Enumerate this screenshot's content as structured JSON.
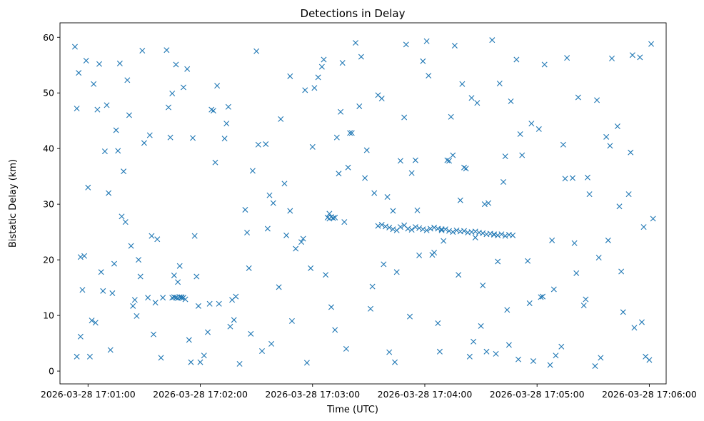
{
  "chart_data": {
    "type": "scatter",
    "title": "Detections in Delay",
    "xlabel": "Time (UTC)",
    "ylabel": "Bistatic Delay (km)",
    "marker": "x",
    "color": "#1f77b4",
    "grid": false,
    "legend": "none",
    "xlim": [
      "2026-03-28 17:00:45",
      "2026-03-28 17:06:09"
    ],
    "ylim": [
      -2.3,
      62.6
    ],
    "x_ticks": [
      "2026-03-28 17:01:00",
      "2026-03-28 17:02:00",
      "2026-03-28 17:03:00",
      "2026-03-28 17:04:00",
      "2026-03-28 17:05:00",
      "2026-03-28 17:06:00"
    ],
    "y_ticks": [
      "0",
      "10",
      "20",
      "30",
      "40",
      "50",
      "60"
    ],
    "series": [
      {
        "x": [
          "2026-03-28 17:00:53",
          "2026-03-28 17:00:54",
          "2026-03-28 17:00:55",
          "2026-03-28 17:00:56",
          "2026-03-28 17:00:57",
          "2026-03-28 17:00:59",
          "2026-03-28 17:01:01",
          "2026-03-28 17:01:03",
          "2026-03-28 17:01:05",
          "2026-03-28 17:01:06",
          "2026-03-28 17:01:08",
          "2026-03-28 17:01:10",
          "2026-03-28 17:01:12",
          "2026-03-28 17:01:14",
          "2026-03-28 17:01:15",
          "2026-03-28 17:01:17",
          "2026-03-28 17:01:19",
          "2026-03-28 17:01:21",
          "2026-03-28 17:01:22",
          "2026-03-28 17:01:24",
          "2026-03-28 17:01:26",
          "2026-03-28 17:01:28",
          "2026-03-28 17:01:30",
          "2026-03-28 17:01:32",
          "2026-03-28 17:01:35",
          "2026-03-28 17:01:37",
          "2026-03-28 17:01:40",
          "2026-03-28 17:01:43",
          "2026-03-28 17:01:45",
          "2026-03-28 17:01:47",
          "2026-03-28 17:01:49",
          "2026-03-28 17:01:50",
          "2026-03-28 17:01:51",
          "2026-03-28 17:01:52",
          "2026-03-28 17:01:53",
          "2026-03-28 17:01:55",
          "2026-03-28 17:01:58",
          "2026-03-28 17:02:00",
          "2026-03-28 17:02:02",
          "2026-03-28 17:02:05",
          "2026-03-28 17:02:08",
          "2026-03-28 17:02:10",
          "2026-03-28 17:02:13",
          "2026-03-28 17:02:15",
          "2026-03-28 17:02:18",
          "2026-03-28 17:02:21",
          "2026-03-28 17:02:24",
          "2026-03-28 17:02:27",
          "2026-03-28 17:02:30",
          "2026-03-28 17:02:33",
          "2026-03-28 17:02:36",
          "2026-03-28 17:02:39",
          "2026-03-28 17:02:42",
          "2026-03-28 17:02:45",
          "2026-03-28 17:02:48",
          "2026-03-28 17:02:51",
          "2026-03-28 17:02:54",
          "2026-03-28 17:02:57",
          "2026-03-28 17:03:00",
          "2026-03-28 17:03:03",
          "2026-03-28 17:03:06",
          "2026-03-28 17:03:09",
          "2026-03-28 17:03:12",
          "2026-03-28 17:03:14",
          "2026-03-28 17:03:15",
          "2026-03-28 17:03:16",
          "2026-03-28 17:03:18",
          "2026-03-28 17:03:20",
          "2026-03-28 17:03:23",
          "2026-03-28 17:03:26",
          "2026-03-28 17:03:29",
          "2026-03-28 17:03:32",
          "2026-03-28 17:03:35",
          "2026-03-28 17:03:38",
          "2026-03-28 17:03:41",
          "2026-03-28 17:03:44",
          "2026-03-28 17:03:47",
          "2026-03-28 17:03:50",
          "2026-03-28 17:03:53",
          "2026-03-28 17:03:56",
          "2026-03-28 17:03:59",
          "2026-03-28 17:04:02",
          "2026-03-28 17:04:05",
          "2026-03-28 17:04:08",
          "2026-03-28 17:04:10",
          "2026-03-28 17:04:12",
          "2026-03-28 17:04:14",
          "2026-03-28 17:04:16",
          "2026-03-28 17:04:18",
          "2026-03-28 17:04:20",
          "2026-03-28 17:04:22",
          "2026-03-28 17:04:24",
          "2026-03-28 17:04:26",
          "2026-03-28 17:04:28",
          "2026-03-28 17:04:30",
          "2026-03-28 17:04:32",
          "2026-03-28 17:04:34",
          "2026-03-28 17:04:36",
          "2026-03-28 17:04:38",
          "2026-03-28 17:04:40",
          "2026-03-28 17:04:42",
          "2026-03-28 17:04:44",
          "2026-03-28 17:04:46",
          "2026-03-28 17:04:49",
          "2026-03-28 17:04:52",
          "2026-03-28 17:04:55",
          "2026-03-28 17:04:58",
          "2026-03-28 17:05:01",
          "2026-03-28 17:05:04",
          "2026-03-28 17:05:07",
          "2026-03-28 17:05:10",
          "2026-03-28 17:05:13",
          "2026-03-28 17:05:16",
          "2026-03-28 17:05:19",
          "2026-03-28 17:05:22",
          "2026-03-28 17:05:25",
          "2026-03-28 17:05:28",
          "2026-03-28 17:05:31",
          "2026-03-28 17:05:34",
          "2026-03-28 17:05:37",
          "2026-03-28 17:05:40",
          "2026-03-28 17:05:43",
          "2026-03-28 17:05:46",
          "2026-03-28 17:05:49",
          "2026-03-28 17:05:52",
          "2026-03-28 17:05:55",
          "2026-03-28 17:05:58",
          "2026-03-28 17:06:01",
          "2026-03-28 17:00:54",
          "2026-03-28 17:00:56",
          "2026-03-28 17:00:58",
          "2026-03-28 17:01:02",
          "2026-03-28 17:01:07",
          "2026-03-28 17:01:11",
          "2026-03-28 17:01:16",
          "2026-03-28 17:01:20",
          "2026-03-28 17:01:25",
          "2026-03-28 17:01:29",
          "2026-03-28 17:01:34",
          "2026-03-28 17:01:39",
          "2026-03-28 17:01:44",
          "2026-03-28 17:01:48",
          "2026-03-28 17:01:54",
          "2026-03-28 17:01:59",
          "2026-03-28 17:02:04",
          "2026-03-28 17:02:09",
          "2026-03-28 17:02:14",
          "2026-03-28 17:02:19",
          "2026-03-28 17:02:25",
          "2026-03-28 17:02:31",
          "2026-03-28 17:02:37",
          "2026-03-28 17:02:43",
          "2026-03-28 17:02:49",
          "2026-03-28 17:02:55",
          "2026-03-28 17:03:01",
          "2026-03-28 17:03:07",
          "2026-03-28 17:03:13",
          "2026-03-28 17:03:19",
          "2026-03-28 17:03:25",
          "2026-03-28 17:03:31",
          "2026-03-28 17:03:37",
          "2026-03-28 17:03:43",
          "2026-03-28 17:03:49",
          "2026-03-28 17:03:55",
          "2026-03-28 17:04:01",
          "2026-03-28 17:04:07",
          "2026-03-28 17:04:13",
          "2026-03-28 17:04:19",
          "2026-03-28 17:04:25",
          "2026-03-28 17:04:31",
          "2026-03-28 17:04:37",
          "2026-03-28 17:04:43",
          "2026-03-28 17:04:50",
          "2026-03-28 17:04:56",
          "2026-03-28 17:05:02",
          "2026-03-28 17:05:08",
          "2026-03-28 17:05:14",
          "2026-03-28 17:05:20",
          "2026-03-28 17:05:26",
          "2026-03-28 17:05:32",
          "2026-03-28 17:05:38",
          "2026-03-28 17:05:44",
          "2026-03-28 17:05:50",
          "2026-03-28 17:05:56",
          "2026-03-28 17:06:00",
          "2026-03-28 17:01:00",
          "2026-03-28 17:01:09",
          "2026-03-28 17:01:18",
          "2026-03-28 17:01:27",
          "2026-03-28 17:01:36",
          "2026-03-28 17:01:46",
          "2026-03-28 17:01:57",
          "2026-03-28 17:02:07",
          "2026-03-28 17:02:17",
          "2026-03-28 17:02:28",
          "2026-03-28 17:02:38",
          "2026-03-28 17:02:48",
          "2026-03-28 17:02:59",
          "2026-03-28 17:03:10",
          "2026-03-28 17:03:21",
          "2026-03-28 17:03:33",
          "2026-03-28 17:03:45",
          "2026-03-28 17:03:57",
          "2026-03-28 17:04:09",
          "2026-03-28 17:04:21",
          "2026-03-28 17:04:33",
          "2026-03-28 17:04:45",
          "2026-03-28 17:04:57",
          "2026-03-28 17:05:09",
          "2026-03-28 17:05:21",
          "2026-03-28 17:05:33",
          "2026-03-28 17:05:45",
          "2026-03-28 17:05:57",
          "2026-03-28 17:01:04",
          "2026-03-28 17:01:13",
          "2026-03-28 17:01:23",
          "2026-03-28 17:01:33",
          "2026-03-28 17:01:42",
          "2026-03-28 17:01:56",
          "2026-03-28 17:02:06",
          "2026-03-28 17:02:16",
          "2026-03-28 17:02:26",
          "2026-03-28 17:02:35",
          "2026-03-28 17:02:46",
          "2026-03-28 17:02:56",
          "2026-03-28 17:03:05",
          "2026-03-28 17:03:17",
          "2026-03-28 17:03:28",
          "2026-03-28 17:03:40",
          "2026-03-28 17:03:52",
          "2026-03-28 17:04:04",
          "2026-03-28 17:04:15",
          "2026-03-28 17:04:27",
          "2026-03-28 17:04:39",
          "2026-03-28 17:04:51",
          "2026-03-28 17:05:03",
          "2026-03-28 17:05:15",
          "2026-03-28 17:05:27",
          "2026-03-28 17:05:39",
          "2026-03-28 17:05:51",
          "2026-03-28 17:06:02",
          "2026-03-28 17:03:35",
          "2026-03-28 17:03:37",
          "2026-03-28 17:03:39",
          "2026-03-28 17:03:41",
          "2026-03-28 17:03:43",
          "2026-03-28 17:03:45",
          "2026-03-28 17:03:47",
          "2026-03-28 17:03:49",
          "2026-03-28 17:03:51",
          "2026-03-28 17:03:53",
          "2026-03-28 17:03:55",
          "2026-03-28 17:03:57",
          "2026-03-28 17:03:59",
          "2026-03-28 17:04:01",
          "2026-03-28 17:04:03",
          "2026-03-28 17:04:05",
          "2026-03-28 17:04:07",
          "2026-03-28 17:04:09",
          "2026-03-28 17:04:11",
          "2026-03-28 17:04:13",
          "2026-03-28 17:04:15",
          "2026-03-28 17:04:17",
          "2026-03-28 17:04:19",
          "2026-03-28 17:04:21",
          "2026-03-28 17:04:23",
          "2026-03-28 17:04:25",
          "2026-03-28 17:04:27",
          "2026-03-28 17:04:29",
          "2026-03-28 17:04:31",
          "2026-03-28 17:04:33",
          "2026-03-28 17:04:35",
          "2026-03-28 17:04:37",
          "2026-03-28 17:04:39",
          "2026-03-28 17:04:41",
          "2026-03-28 17:04:43",
          "2026-03-28 17:04:45",
          "2026-03-28 17:04:47"
        ],
        "y": [
          58.3,
          2.6,
          53.6,
          20.5,
          14.6,
          55.8,
          2.6,
          51.6,
          47.0,
          55.2,
          14.4,
          47.8,
          3.8,
          19.3,
          43.3,
          55.3,
          35.9,
          52.3,
          46.0,
          11.7,
          9.9,
          17.0,
          41.0,
          13.2,
          6.6,
          23.7,
          13.2,
          47.4,
          49.9,
          55.1,
          18.9,
          13.3,
          51.0,
          12.9,
          54.3,
          1.6,
          17.0,
          1.6,
          2.8,
          12.1,
          37.5,
          12.1,
          41.8,
          47.5,
          9.2,
          1.3,
          29.0,
          6.7,
          57.5,
          3.6,
          25.6,
          30.2,
          15.1,
          33.7,
          53.0,
          22.0,
          23.2,
          1.5,
          40.3,
          52.8,
          56.0,
          28.3,
          7.4,
          35.5,
          46.6,
          55.4,
          4.0,
          42.8,
          59.0,
          56.5,
          39.7,
          15.2,
          49.6,
          19.2,
          3.4,
          1.6,
          37.8,
          58.7,
          35.6,
          28.9,
          55.7,
          53.1,
          21.3,
          3.5,
          23.4,
          37.9,
          45.7,
          58.5,
          17.3,
          51.6,
          36.4,
          2.6,
          5.3,
          48.2,
          8.1,
          30.0,
          30.2,
          59.5,
          3.1,
          51.7,
          34.0,
          11.0,
          48.5,
          56.0,
          38.8,
          19.8,
          1.8,
          43.5,
          55.1,
          1.1,
          2.8,
          4.4,
          56.3,
          34.7,
          49.2,
          11.8,
          31.8,
          0.9,
          2.4,
          42.1,
          56.2,
          44.0,
          10.6,
          31.8,
          7.8,
          56.4,
          2.6,
          58.8,
          47.2,
          6.2,
          20.7,
          9.1,
          17.8,
          32.0,
          39.6,
          26.8,
          12.8,
          57.6,
          24.3,
          2.4,
          42.0,
          16.0,
          5.6,
          11.7,
          7.0,
          51.3,
          44.5,
          13.4,
          24.9,
          40.7,
          31.6,
          45.3,
          9.0,
          23.8,
          50.9,
          17.3,
          42.0,
          36.6,
          47.6,
          11.2,
          49.0,
          28.8,
          45.6,
          37.9,
          59.3,
          8.6,
          37.8,
          30.7,
          49.1,
          15.4,
          24.6,
          38.6,
          2.1,
          12.2,
          13.3,
          23.5,
          40.7,
          23.0,
          12.9,
          48.7,
          23.5,
          29.6,
          39.3,
          8.8,
          2.0,
          33.0,
          39.5,
          27.8,
          20.0,
          12.3,
          17.2,
          24.3,
          46.8,
          12.8,
          36.0,
          4.9,
          28.8,
          18.5,
          11.5,
          42.8,
          32.0,
          17.8,
          20.8,
          25.5,
          36.6,
          3.5,
          4.7,
          44.5,
          14.7,
          17.6,
          20.4,
          17.9,
          25.9,
          8.7,
          14.0,
          22.5,
          42.4,
          57.7,
          41.9,
          47.0,
          8.0,
          18.5,
          40.8,
          24.4,
          50.5,
          54.7,
          26.8,
          34.7,
          31.3,
          9.8,
          20.9,
          38.8,
          24.0,
          19.7,
          42.6,
          13.4,
          34.6,
          34.8,
          40.5,
          56.8,
          27.4,
          26.1,
          26.3,
          26.0,
          25.8,
          25.5,
          25.3,
          25.9,
          26.2,
          25.6,
          25.4,
          25.9,
          25.7,
          25.5,
          25.3,
          25.6,
          25.8,
          25.6,
          25.3,
          25.5,
          25.2,
          25.0,
          25.3,
          25.1,
          25.2,
          24.9,
          25.0,
          25.1,
          24.9,
          24.8,
          24.6,
          24.7,
          24.5,
          24.4,
          24.6,
          24.3,
          24.5,
          24.4
        ]
      },
      {
        "x": [
          "2026-03-28 17:01:45",
          "2026-03-28 17:01:46",
          "2026-03-28 17:01:47",
          "2026-03-28 17:01:48",
          "2026-03-28 17:01:49",
          "2026-03-28 17:01:50",
          "2026-03-28 17:01:51",
          "2026-03-28 17:03:08",
          "2026-03-28 17:03:09",
          "2026-03-28 17:03:10",
          "2026-03-28 17:03:11",
          "2026-03-28 17:03:12"
        ],
        "y": [
          13.2,
          13.3,
          13.2,
          13.1,
          13.3,
          13.2,
          13.2,
          27.6,
          27.4,
          27.7,
          27.5,
          27.6
        ]
      }
    ]
  }
}
